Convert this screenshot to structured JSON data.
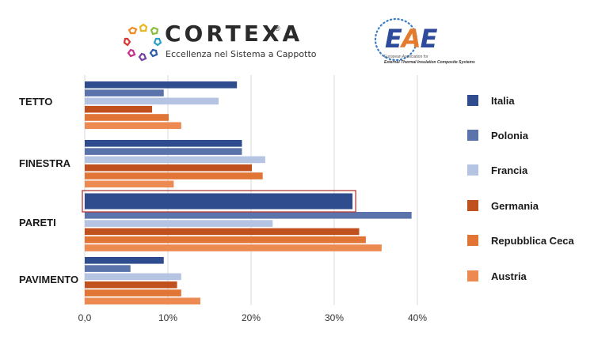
{
  "header": {
    "cortexa_title": "CORTEXA",
    "cortexa_reg": "®",
    "cortexa_subtitle": "Eccellenza nel Sistema a Cappotto",
    "eae_title_1": "E",
    "eae_title_2": "A",
    "eae_title_3": "E",
    "eae_line1": "European Association for",
    "eae_line2": "External Thermal Insulation Composite Systems"
  },
  "colors": {
    "Italia": "#2e4c8e",
    "Polonia": "#5b73ab",
    "Francia": "#b6c4e3",
    "Germania": "#c0501d",
    "Repubblica Ceca": "#e17536",
    "Austria": "#ec8a52",
    "highlight": "#b03a3a",
    "grid": "#d9d9d9"
  },
  "chart_data": {
    "type": "bar",
    "orientation": "horizontal",
    "categories": [
      "TETTO",
      "FINESTRA",
      "PARETI",
      "PAVIMENTO"
    ],
    "series": [
      {
        "name": "Italia",
        "values": [
          18.3,
          18.9,
          32.2,
          9.5
        ]
      },
      {
        "name": "Polonia",
        "values": [
          9.5,
          18.9,
          39.3,
          5.5
        ]
      },
      {
        "name": "Francia",
        "values": [
          16.1,
          21.7,
          22.6,
          11.6
        ]
      },
      {
        "name": "Germania",
        "values": [
          8.1,
          20.1,
          33.0,
          11.1
        ]
      },
      {
        "name": "Repubblica Ceca",
        "values": [
          10.1,
          21.4,
          33.8,
          11.6
        ]
      },
      {
        "name": "Austria",
        "values": [
          11.6,
          10.7,
          35.7,
          13.9
        ]
      }
    ],
    "xlim": [
      0,
      40
    ],
    "xticks": [
      "0,0",
      "10%",
      "20%",
      "30%",
      "40%"
    ],
    "grid": "vertical",
    "legend": "right",
    "highlighted": {
      "category": "PARETI",
      "series": "Italia"
    }
  }
}
